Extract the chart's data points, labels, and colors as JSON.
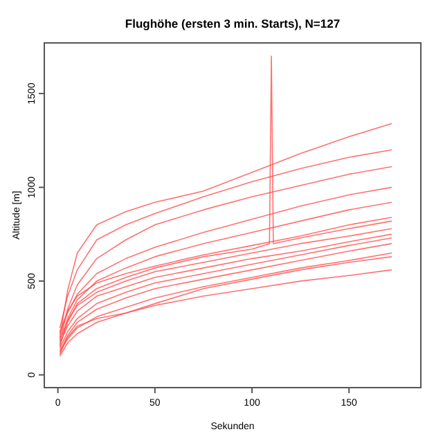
{
  "chart_data": {
    "type": "line",
    "title": "Flughöhe (ersten 3 min. Starts), N=127",
    "xlabel": "Sekunden",
    "ylabel": "Altitude [m]",
    "x": [
      1,
      5,
      10,
      20,
      35,
      50,
      75,
      100,
      125,
      150,
      172
    ],
    "xlim": [
      -7,
      187
    ],
    "ylim": [
      -68,
      1770
    ],
    "xticks": [
      0,
      50,
      100,
      150
    ],
    "yticks": [
      0,
      500,
      1000,
      1500
    ],
    "grid": false,
    "marker": "none",
    "line_style": "solid",
    "series": [
      {
        "color": "#ff4d4d",
        "values": [
          200,
          450,
          650,
          800,
          870,
          920,
          980,
          1080,
          1180,
          1270,
          1340
        ]
      },
      {
        "color": "#ff4d4d",
        "values": [
          250,
          420,
          560,
          720,
          800,
          860,
          950,
          1030,
          1100,
          1160,
          1200
        ]
      },
      {
        "color": "#ff4d4d",
        "values": [
          180,
          350,
          480,
          620,
          720,
          800,
          880,
          950,
          1010,
          1070,
          1110
        ]
      },
      {
        "color": "#ff4d4d",
        "values": [
          220,
          330,
          430,
          540,
          620,
          680,
          760,
          830,
          900,
          960,
          1000
        ]
      },
      {
        "color": "#ff4d4d",
        "values": [
          150,
          300,
          400,
          500,
          570,
          630,
          700,
          760,
          820,
          880,
          920
        ]
      },
      {
        "color": "#ff4d4d",
        "values": [
          230,
          340,
          420,
          490,
          540,
          580,
          640,
          690,
          740,
          800,
          840
        ]
      },
      {
        "color": "#ff4d4d",
        "values": [
          190,
          290,
          370,
          440,
          500,
          550,
          600,
          650,
          700,
          740,
          780
        ]
      },
      {
        "color": "#ff4d4d",
        "values": [
          170,
          260,
          340,
          420,
          470,
          520,
          570,
          620,
          660,
          710,
          750
        ]
      },
      {
        "color": "#ff4d4d",
        "values": [
          140,
          230,
          300,
          380,
          440,
          490,
          540,
          590,
          640,
          690,
          730
        ]
      },
      {
        "color": "#ff4d4d",
        "values": [
          120,
          210,
          280,
          350,
          410,
          460,
          510,
          560,
          610,
          660,
          700
        ]
      },
      {
        "color": "#ff4d4d",
        "values": [
          130,
          190,
          250,
          310,
          360,
          410,
          470,
          520,
          570,
          610,
          650
        ]
      },
      {
        "color": "#ff4d4d",
        "values": [
          100,
          170,
          220,
          280,
          330,
          370,
          420,
          460,
          500,
          530,
          560
        ]
      },
      {
        "color": "#ff4d4d",
        "values": [
          110,
          200,
          260,
          300,
          330,
          380,
          460,
          510,
          560,
          600,
          630
        ]
      },
      {
        "color": "#ff4d4d",
        "x": [
          1,
          5,
          10,
          20,
          35,
          50,
          75,
          100,
          109,
          110,
          111,
          125,
          150,
          172
        ],
        "values": [
          160,
          280,
          380,
          460,
          520,
          570,
          630,
          670,
          700,
          1700,
          700,
          730,
          780,
          820
        ]
      }
    ]
  }
}
